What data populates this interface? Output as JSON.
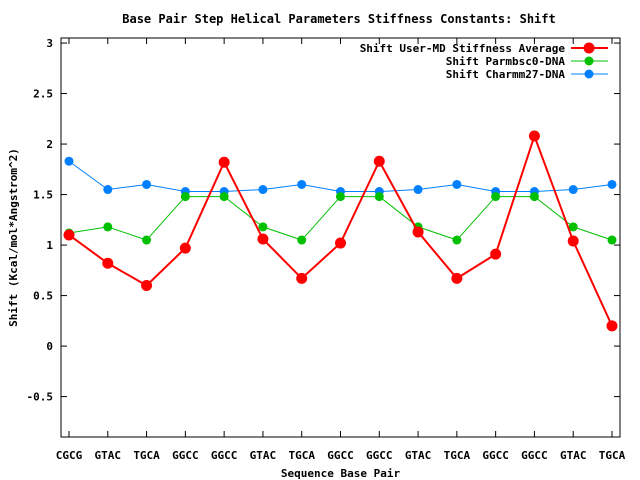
{
  "chart_data": {
    "type": "line",
    "title": "Base Pair Step Helical Parameters Stiffness Constants: Shift",
    "xlabel": "Sequence Base Pair",
    "ylabel": "Shift (Kcal/mol*Angstrom^2)",
    "categories": [
      "CGCG",
      "GTAC",
      "TGCA",
      "GGCC",
      "GGCC",
      "GTAC",
      "TGCA",
      "GGCC",
      "GGCC",
      "GTAC",
      "TGCA",
      "GGCC",
      "GGCC",
      "GTAC",
      "TGCA"
    ],
    "ylim": [
      -0.9,
      3.05
    ],
    "yticks": [
      -0.5,
      0,
      0.5,
      1,
      1.5,
      2,
      2.5,
      3
    ],
    "ytick_labels": [
      "-0.5",
      "0",
      "0.5",
      "1",
      "1.5",
      "2",
      "2.5",
      "3"
    ],
    "grid": false,
    "legend_position": "top-right",
    "series": [
      {
        "name": "Shift User-MD Stiffness Average",
        "color": "#ff0000",
        "values": [
          1.1,
          0.82,
          0.6,
          0.97,
          1.82,
          1.06,
          0.67,
          1.02,
          1.83,
          1.13,
          0.67,
          0.91,
          2.08,
          1.04,
          0.2
        ]
      },
      {
        "name": "Shift Parmbsc0-DNA",
        "color": "#00c000",
        "values": [
          1.12,
          1.18,
          1.05,
          1.48,
          1.48,
          1.18,
          1.05,
          1.48,
          1.48,
          1.18,
          1.05,
          1.48,
          1.48,
          1.18,
          1.05
        ]
      },
      {
        "name": "Shift Charmm27-DNA",
        "color": "#0080ff",
        "values": [
          1.83,
          1.55,
          1.6,
          1.53,
          1.53,
          1.55,
          1.6,
          1.53,
          1.53,
          1.55,
          1.6,
          1.53,
          1.53,
          1.55,
          1.6
        ]
      }
    ]
  }
}
